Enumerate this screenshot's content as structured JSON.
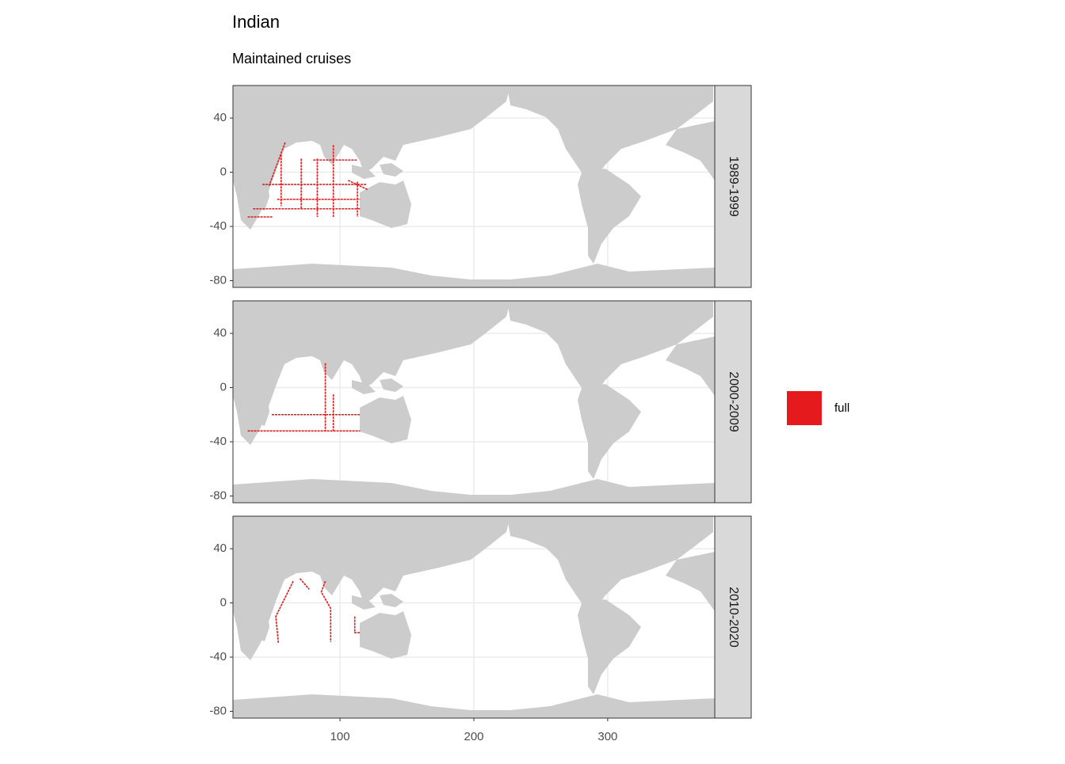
{
  "chart_data": {
    "type": "map",
    "title": "Indian",
    "subtitle": "Maintained cruises",
    "xlim": [
      20,
      380
    ],
    "xticks": [
      100,
      200,
      300
    ],
    "ylim": [
      -85,
      64
    ],
    "yticks": [
      40,
      0,
      -40,
      -80
    ],
    "grid": true,
    "series": [
      {
        "name": "full",
        "color": "#e41a1c"
      }
    ],
    "facets": [
      {
        "label": "1989-1999",
        "tracks": [
          {
            "x": [
              42,
              120
            ],
            "y": [
              -9,
              -9
            ]
          },
          {
            "x": [
              53,
              115
            ],
            "y": [
              -20,
              -20
            ]
          },
          {
            "x": [
              31,
              50
            ],
            "y": [
              -33,
              -33
            ]
          },
          {
            "x": [
              71,
              71
            ],
            "y": [
              10,
              -27
            ]
          },
          {
            "x": [
              83,
              83
            ],
            "y": [
              10,
              -33
            ]
          },
          {
            "x": [
              95,
              95
            ],
            "y": [
              20,
              -33
            ]
          },
          {
            "x": [
              56,
              56
            ],
            "y": [
              13,
              -25
            ]
          },
          {
            "x": [
              80,
              113
            ],
            "y": [
              9,
              9
            ]
          },
          {
            "x": [
              59,
              47
            ],
            "y": [
              22,
              -10
            ]
          },
          {
            "x": [
              113,
              113
            ],
            "y": [
              -7,
              -33
            ]
          },
          {
            "x": [
              106,
              121
            ],
            "y": [
              -6,
              -13
            ]
          },
          {
            "x": [
              35,
              115
            ],
            "y": [
              -27,
              -27
            ]
          }
        ]
      },
      {
        "label": "2000-2009",
        "tracks": [
          {
            "x": [
              49,
              115
            ],
            "y": [
              -20,
              -20
            ]
          },
          {
            "x": [
              31,
              115
            ],
            "y": [
              -32,
              -32
            ]
          },
          {
            "x": [
              89,
              89
            ],
            "y": [
              18,
              -32
            ]
          },
          {
            "x": [
              95,
              95
            ],
            "y": [
              -5,
              -32
            ]
          }
        ]
      },
      {
        "label": "2010-2020",
        "tracks": [
          {
            "x": [
              65,
              52,
              54
            ],
            "y": [
              16,
              -10,
              -30
            ]
          },
          {
            "x": [
              70,
              77
            ],
            "y": [
              18,
              10
            ]
          },
          {
            "x": [
              89,
              86,
              93,
              93
            ],
            "y": [
              16,
              8,
              -4,
              -29
            ]
          },
          {
            "x": [
              111,
              111,
              115
            ],
            "y": [
              -10,
              -22,
              -22
            ]
          }
        ]
      }
    ]
  }
}
